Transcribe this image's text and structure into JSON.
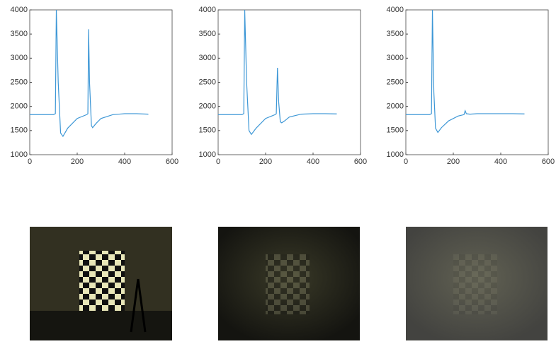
{
  "chart_data": [
    {
      "type": "line",
      "color": "#3d97d6",
      "x": [
        0,
        100,
        108,
        112,
        120,
        130,
        140,
        160,
        200,
        240,
        245,
        248,
        252,
        260,
        265,
        280,
        300,
        350,
        400,
        450,
        500
      ],
      "values": [
        1830,
        1830,
        1850,
        4000,
        2500,
        1450,
        1380,
        1550,
        1750,
        1830,
        1850,
        3600,
        2500,
        1600,
        1560,
        1650,
        1750,
        1830,
        1850,
        1850,
        1840
      ],
      "xlim": [
        0,
        600
      ],
      "xticks": [
        0,
        200,
        400,
        600
      ],
      "ylim": [
        1000,
        4000
      ],
      "yticks": [
        1000,
        1500,
        2000,
        2500,
        3000,
        3500,
        4000
      ]
    },
    {
      "type": "line",
      "color": "#3d97d6",
      "x": [
        0,
        100,
        108,
        112,
        120,
        130,
        140,
        160,
        200,
        240,
        245,
        250,
        255,
        262,
        268,
        280,
        300,
        350,
        400,
        450,
        500
      ],
      "values": [
        1830,
        1830,
        1850,
        4000,
        2500,
        1500,
        1420,
        1550,
        1750,
        1830,
        1850,
        2800,
        2100,
        1680,
        1660,
        1700,
        1780,
        1840,
        1850,
        1850,
        1845
      ],
      "xlim": [
        0,
        600
      ],
      "xticks": [
        0,
        200,
        400,
        600
      ],
      "ylim": [
        1000,
        4000
      ],
      "yticks": [
        1000,
        1500,
        2000,
        2500,
        3000,
        3500,
        4000
      ]
    },
    {
      "type": "line",
      "color": "#3d97d6",
      "x": [
        0,
        100,
        108,
        112,
        118,
        125,
        135,
        150,
        180,
        220,
        245,
        250,
        255,
        270,
        300,
        350,
        400,
        450,
        500
      ],
      "values": [
        1830,
        1830,
        1850,
        4000,
        2300,
        1550,
        1460,
        1560,
        1700,
        1800,
        1830,
        1910,
        1850,
        1840,
        1850,
        1850,
        1850,
        1850,
        1845
      ],
      "xlim": [
        0,
        600
      ],
      "xticks": [
        0,
        200,
        400,
        600
      ],
      "ylim": [
        1000,
        4000
      ],
      "yticks": [
        1000,
        1500,
        2000,
        2500,
        3000,
        3500,
        4000
      ]
    }
  ]
}
